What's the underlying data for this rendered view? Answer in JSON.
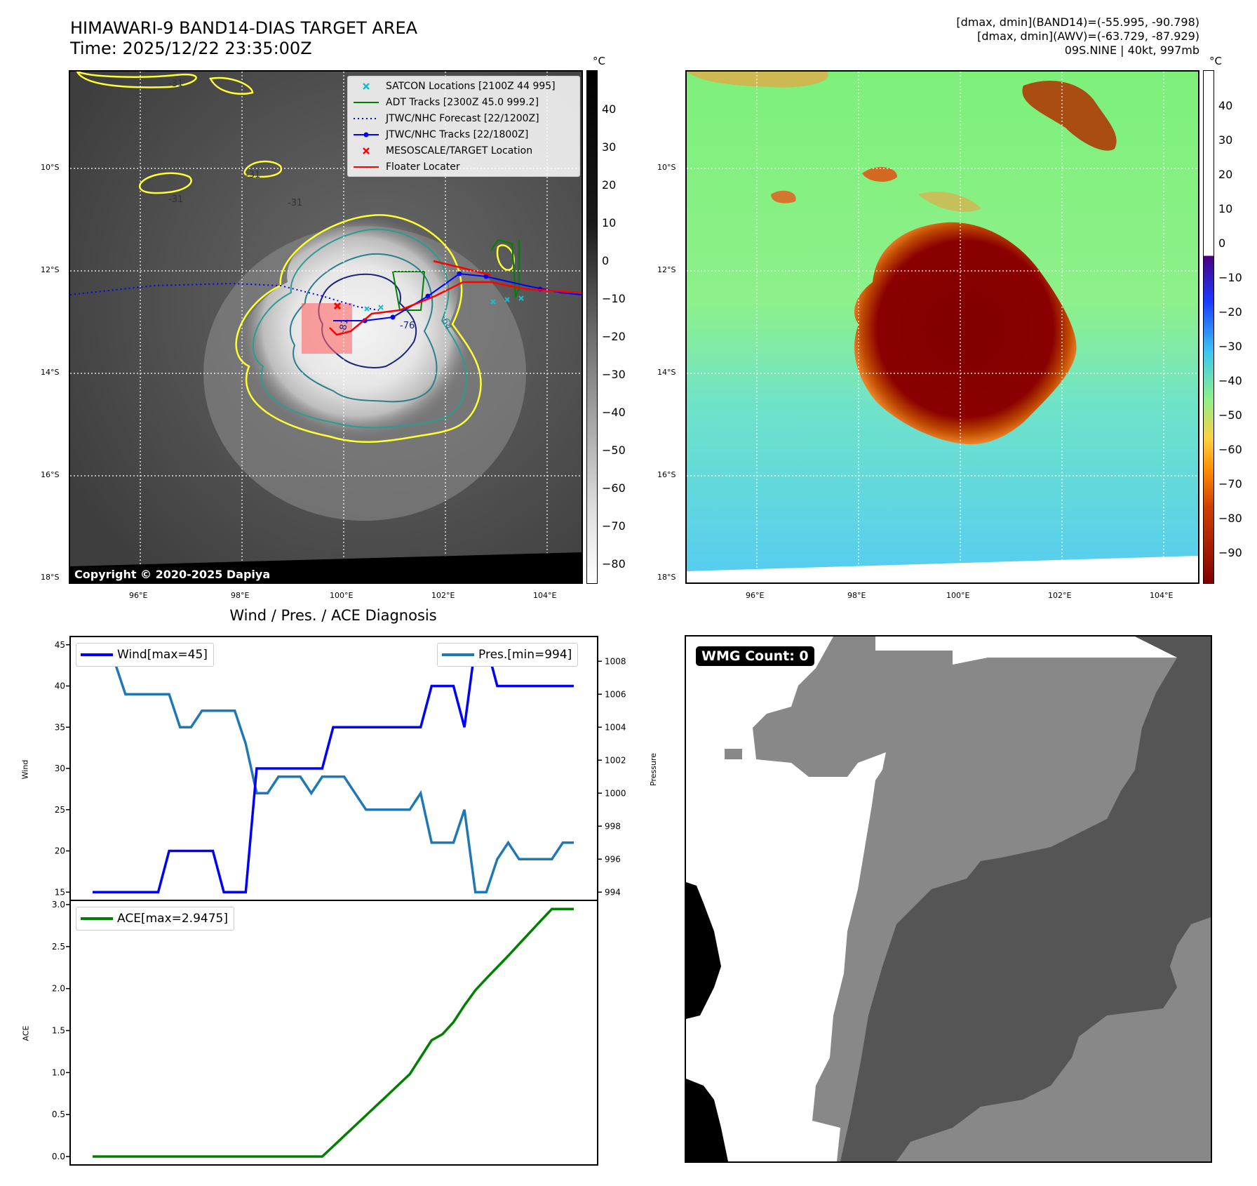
{
  "header": {
    "title_line1": "HIMAWARI-9 BAND14-DIAS TARGET AREA",
    "title_line2": "Time: 2025/12/22 23:35:00Z",
    "info_line1": "[dmax, dmin](BAND14)=(-55.995, -90.798)",
    "info_line2": "[dmax, dmin](AWV)=(-63.729, -87.929)",
    "info_line3": "09S.NINE | 40kt, 997mb"
  },
  "map_axes": {
    "lat_ticks": [
      "10°S",
      "12°S",
      "14°S",
      "16°S",
      "18°S"
    ],
    "lon_ticks": [
      "96°E",
      "98°E",
      "100°E",
      "102°E",
      "104°E"
    ]
  },
  "ir_panel": {
    "colorbar_unit": "°C",
    "colorbar_ticks": [
      "40",
      "30",
      "20",
      "10",
      "0",
      "−10",
      "−20",
      "−30",
      "−40",
      "−50",
      "−60",
      "−70",
      "−80"
    ],
    "copyright": "Copyright © 2020-2025 Dapiya",
    "contour_labels": [
      "-31",
      "-31",
      "-31",
      "-31",
      "-81",
      "-76",
      "-64"
    ],
    "legend": [
      {
        "label": "SATCON Locations [2100Z 44 995]",
        "color": "#17becf",
        "symbol": "x"
      },
      {
        "label": "ADT Tracks [2300Z 45.0 999.2]",
        "color": "#008000",
        "symbol": "line"
      },
      {
        "label": "JTWC/NHC Forecast [22/1200Z]",
        "color": "#0000ff",
        "symbol": "dotted"
      },
      {
        "label": "JTWC/NHC Tracks [22/1800Z]",
        "color": "#0000ff",
        "symbol": "line-dot"
      },
      {
        "label": "MESOSCALE/TARGET Location",
        "color": "#ff0000",
        "symbol": "x"
      },
      {
        "label": "Floater Locater",
        "color": "#ff0000",
        "symbol": "line"
      }
    ]
  },
  "awv_panel": {
    "colorbar_unit": "°C",
    "colorbar_ticks": [
      "40",
      "30",
      "20",
      "10",
      "0",
      "−10",
      "−20",
      "−30",
      "−40",
      "−50",
      "−60",
      "−70",
      "−80",
      "−90"
    ]
  },
  "chart_data": [
    {
      "type": "line",
      "title": "Wind / Pres. / ACE Diagnosis",
      "ylabel": "Wind",
      "ylabel_right": "Pressure",
      "ylim": [
        14,
        46
      ],
      "ylim_right": [
        993.5,
        1009.5
      ],
      "yticks": [
        "15",
        "20",
        "25",
        "30",
        "35",
        "40",
        "45"
      ],
      "yticks_right": [
        "994",
        "996",
        "998",
        "1000",
        "1002",
        "1004",
        "1006",
        "1008"
      ],
      "x": [
        0,
        1,
        2,
        3,
        4,
        5,
        6,
        7,
        8,
        9,
        10,
        11,
        12,
        13,
        14,
        15,
        16,
        17,
        18,
        19,
        20,
        21,
        22,
        23,
        24,
        25,
        26,
        27,
        28,
        29,
        30,
        31,
        32,
        33,
        34,
        35,
        36,
        37,
        38,
        39,
        40,
        41,
        42,
        43,
        44
      ],
      "series": [
        {
          "name": "Wind",
          "legend": "Wind[max=45]",
          "color": "#0000ff",
          "values": [
            15,
            15,
            15,
            15,
            15,
            15,
            15,
            20,
            20,
            20,
            20,
            20,
            15,
            15,
            15,
            30,
            30,
            30,
            30,
            30,
            30,
            30,
            35,
            35,
            35,
            35,
            35,
            35,
            35,
            35,
            35,
            40,
            40,
            40,
            35,
            45,
            45,
            40,
            40,
            40,
            40,
            40,
            40,
            40,
            40
          ]
        },
        {
          "name": "Pres.",
          "legend": "Pres.[min=994]",
          "color": "#1f77b4",
          "values": [
            1008,
            1008,
            1008,
            1006,
            1006,
            1006,
            1006,
            1006,
            1004,
            1004,
            1005,
            1005,
            1005,
            1005,
            1003,
            1000,
            1000,
            1001,
            1001,
            1001,
            1000,
            1001,
            1001,
            1001,
            1000,
            999,
            999,
            999,
            999,
            999,
            1000,
            997,
            997,
            997,
            999,
            994,
            994,
            996,
            997,
            996,
            996,
            996,
            996,
            997,
            997
          ]
        }
      ]
    },
    {
      "type": "line",
      "ylabel": "ACE",
      "ylim": [
        -0.1,
        3.05
      ],
      "yticks": [
        "0.0",
        "0.5",
        "1.0",
        "1.5",
        "2.0",
        "2.5",
        "3.0"
      ],
      "x": [
        0,
        1,
        2,
        3,
        4,
        5,
        6,
        7,
        8,
        9,
        10,
        11,
        12,
        13,
        14,
        15,
        16,
        17,
        18,
        19,
        20,
        21,
        22,
        23,
        24,
        25,
        26,
        27,
        28,
        29,
        30,
        31,
        32,
        33,
        34,
        35,
        36,
        37,
        38,
        39,
        40,
        41,
        42,
        43,
        44
      ],
      "series": [
        {
          "name": "ACE",
          "legend": "ACE[max=2.9475]",
          "color": "#008000",
          "values": [
            0,
            0,
            0,
            0,
            0,
            0,
            0,
            0,
            0,
            0,
            0,
            0,
            0,
            0,
            0,
            0,
            0,
            0,
            0,
            0,
            0,
            0,
            0.1225,
            0.245,
            0.3675,
            0.49,
            0.6125,
            0.735,
            0.8575,
            0.98,
            1.1825,
            1.385,
            1.4575,
            1.6,
            1.8,
            1.98,
            2.12,
            2.255,
            2.39,
            2.53,
            2.67,
            2.81,
            2.9475,
            2.9475,
            2.9475
          ]
        }
      ]
    }
  ],
  "wmg_panel": {
    "badge": "WMG Count: 0"
  }
}
